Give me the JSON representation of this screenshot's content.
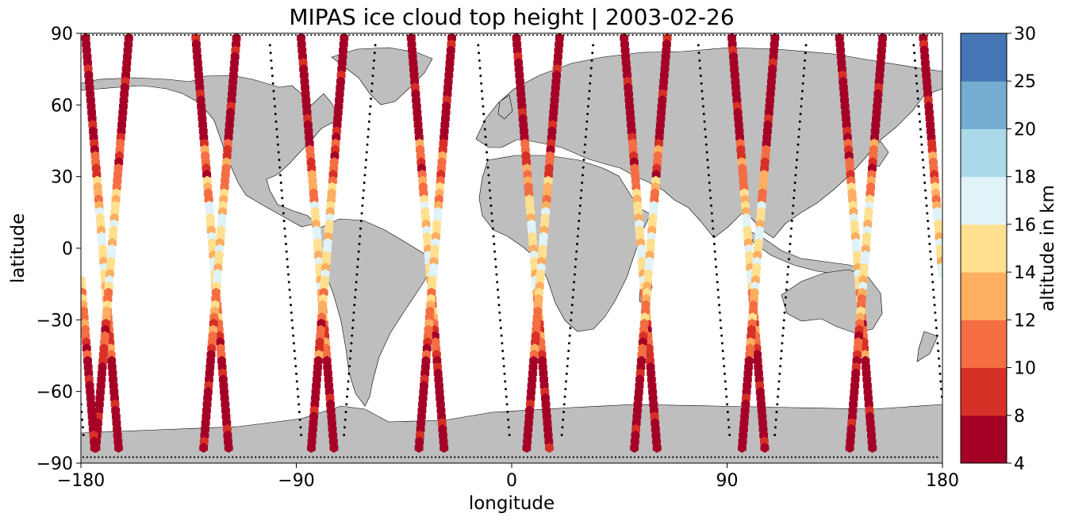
{
  "chart_data": {
    "type": "scatter",
    "title": "MIPAS ice cloud top height | 2003-02-26",
    "xlabel": "longitude",
    "ylabel": "latitude",
    "xlim": [
      -180,
      180
    ],
    "ylim": [
      -90,
      90
    ],
    "xticks": [
      {
        "value": -180,
        "label": "−180"
      },
      {
        "value": -90,
        "label": "−90"
      },
      {
        "value": 0,
        "label": "0"
      },
      {
        "value": 90,
        "label": "90"
      },
      {
        "value": 180,
        "label": "180"
      }
    ],
    "yticks": [
      {
        "value": -90,
        "label": "−90"
      },
      {
        "value": -60,
        "label": "−60"
      },
      {
        "value": -30,
        "label": "−30"
      },
      {
        "value": 0,
        "label": "0"
      },
      {
        "value": 30,
        "label": "30"
      },
      {
        "value": 60,
        "label": "60"
      },
      {
        "value": 90,
        "label": "90"
      }
    ],
    "grid": false,
    "land_color": "#bebebe",
    "colorbar": {
      "label": "altitude in km",
      "bounds": [
        4,
        8,
        10,
        12,
        14,
        16,
        18,
        20,
        25,
        30
      ],
      "tick_labels": [
        "4",
        "8",
        "10",
        "12",
        "14",
        "16",
        "18",
        "20",
        "25",
        "30"
      ],
      "colors": [
        "#a50026",
        "#d73027",
        "#f46d43",
        "#fdae61",
        "#fee090",
        "#e0f3f8",
        "#abd9e9",
        "#74add1",
        "#4575b4",
        "#313695"
      ]
    },
    "tracks": [
      {
        "lon0": -178,
        "lat_start": 88,
        "lat_end": -85,
        "slope": 0.08
      },
      {
        "lon0": -160,
        "lat_start": 88,
        "lat_end": -85,
        "slope": -0.08
      },
      {
        "lon0": -132,
        "lat_start": 88,
        "lat_end": -85,
        "slope": 0.08
      },
      {
        "lon0": -115,
        "lat_start": 88,
        "lat_end": -85,
        "slope": -0.08
      },
      {
        "lon0": -88,
        "lat_start": 88,
        "lat_end": -85,
        "slope": 0.08
      },
      {
        "lon0": -70,
        "lat_start": 88,
        "lat_end": -85,
        "slope": -0.08
      },
      {
        "lon0": -42,
        "lat_start": 88,
        "lat_end": -85,
        "slope": 0.08
      },
      {
        "lon0": -25,
        "lat_start": 88,
        "lat_end": -85,
        "slope": -0.08
      },
      {
        "lon0": 2,
        "lat_start": 88,
        "lat_end": -85,
        "slope": 0.08
      },
      {
        "lon0": 20,
        "lat_start": 88,
        "lat_end": -85,
        "slope": -0.08
      },
      {
        "lon0": 47,
        "lat_start": 88,
        "lat_end": -85,
        "slope": 0.08
      },
      {
        "lon0": 65,
        "lat_start": 88,
        "lat_end": -85,
        "slope": -0.08
      },
      {
        "lon0": 92,
        "lat_start": 88,
        "lat_end": -85,
        "slope": 0.08
      },
      {
        "lon0": 110,
        "lat_start": 88,
        "lat_end": -85,
        "slope": -0.08
      },
      {
        "lon0": 137,
        "lat_start": 88,
        "lat_end": -85,
        "slope": 0.08
      },
      {
        "lon0": 155,
        "lat_start": 88,
        "lat_end": -85,
        "slope": -0.08
      },
      {
        "lon0": 172,
        "lat_start": 88,
        "lat_end": -85,
        "slope": 0.08
      }
    ]
  }
}
